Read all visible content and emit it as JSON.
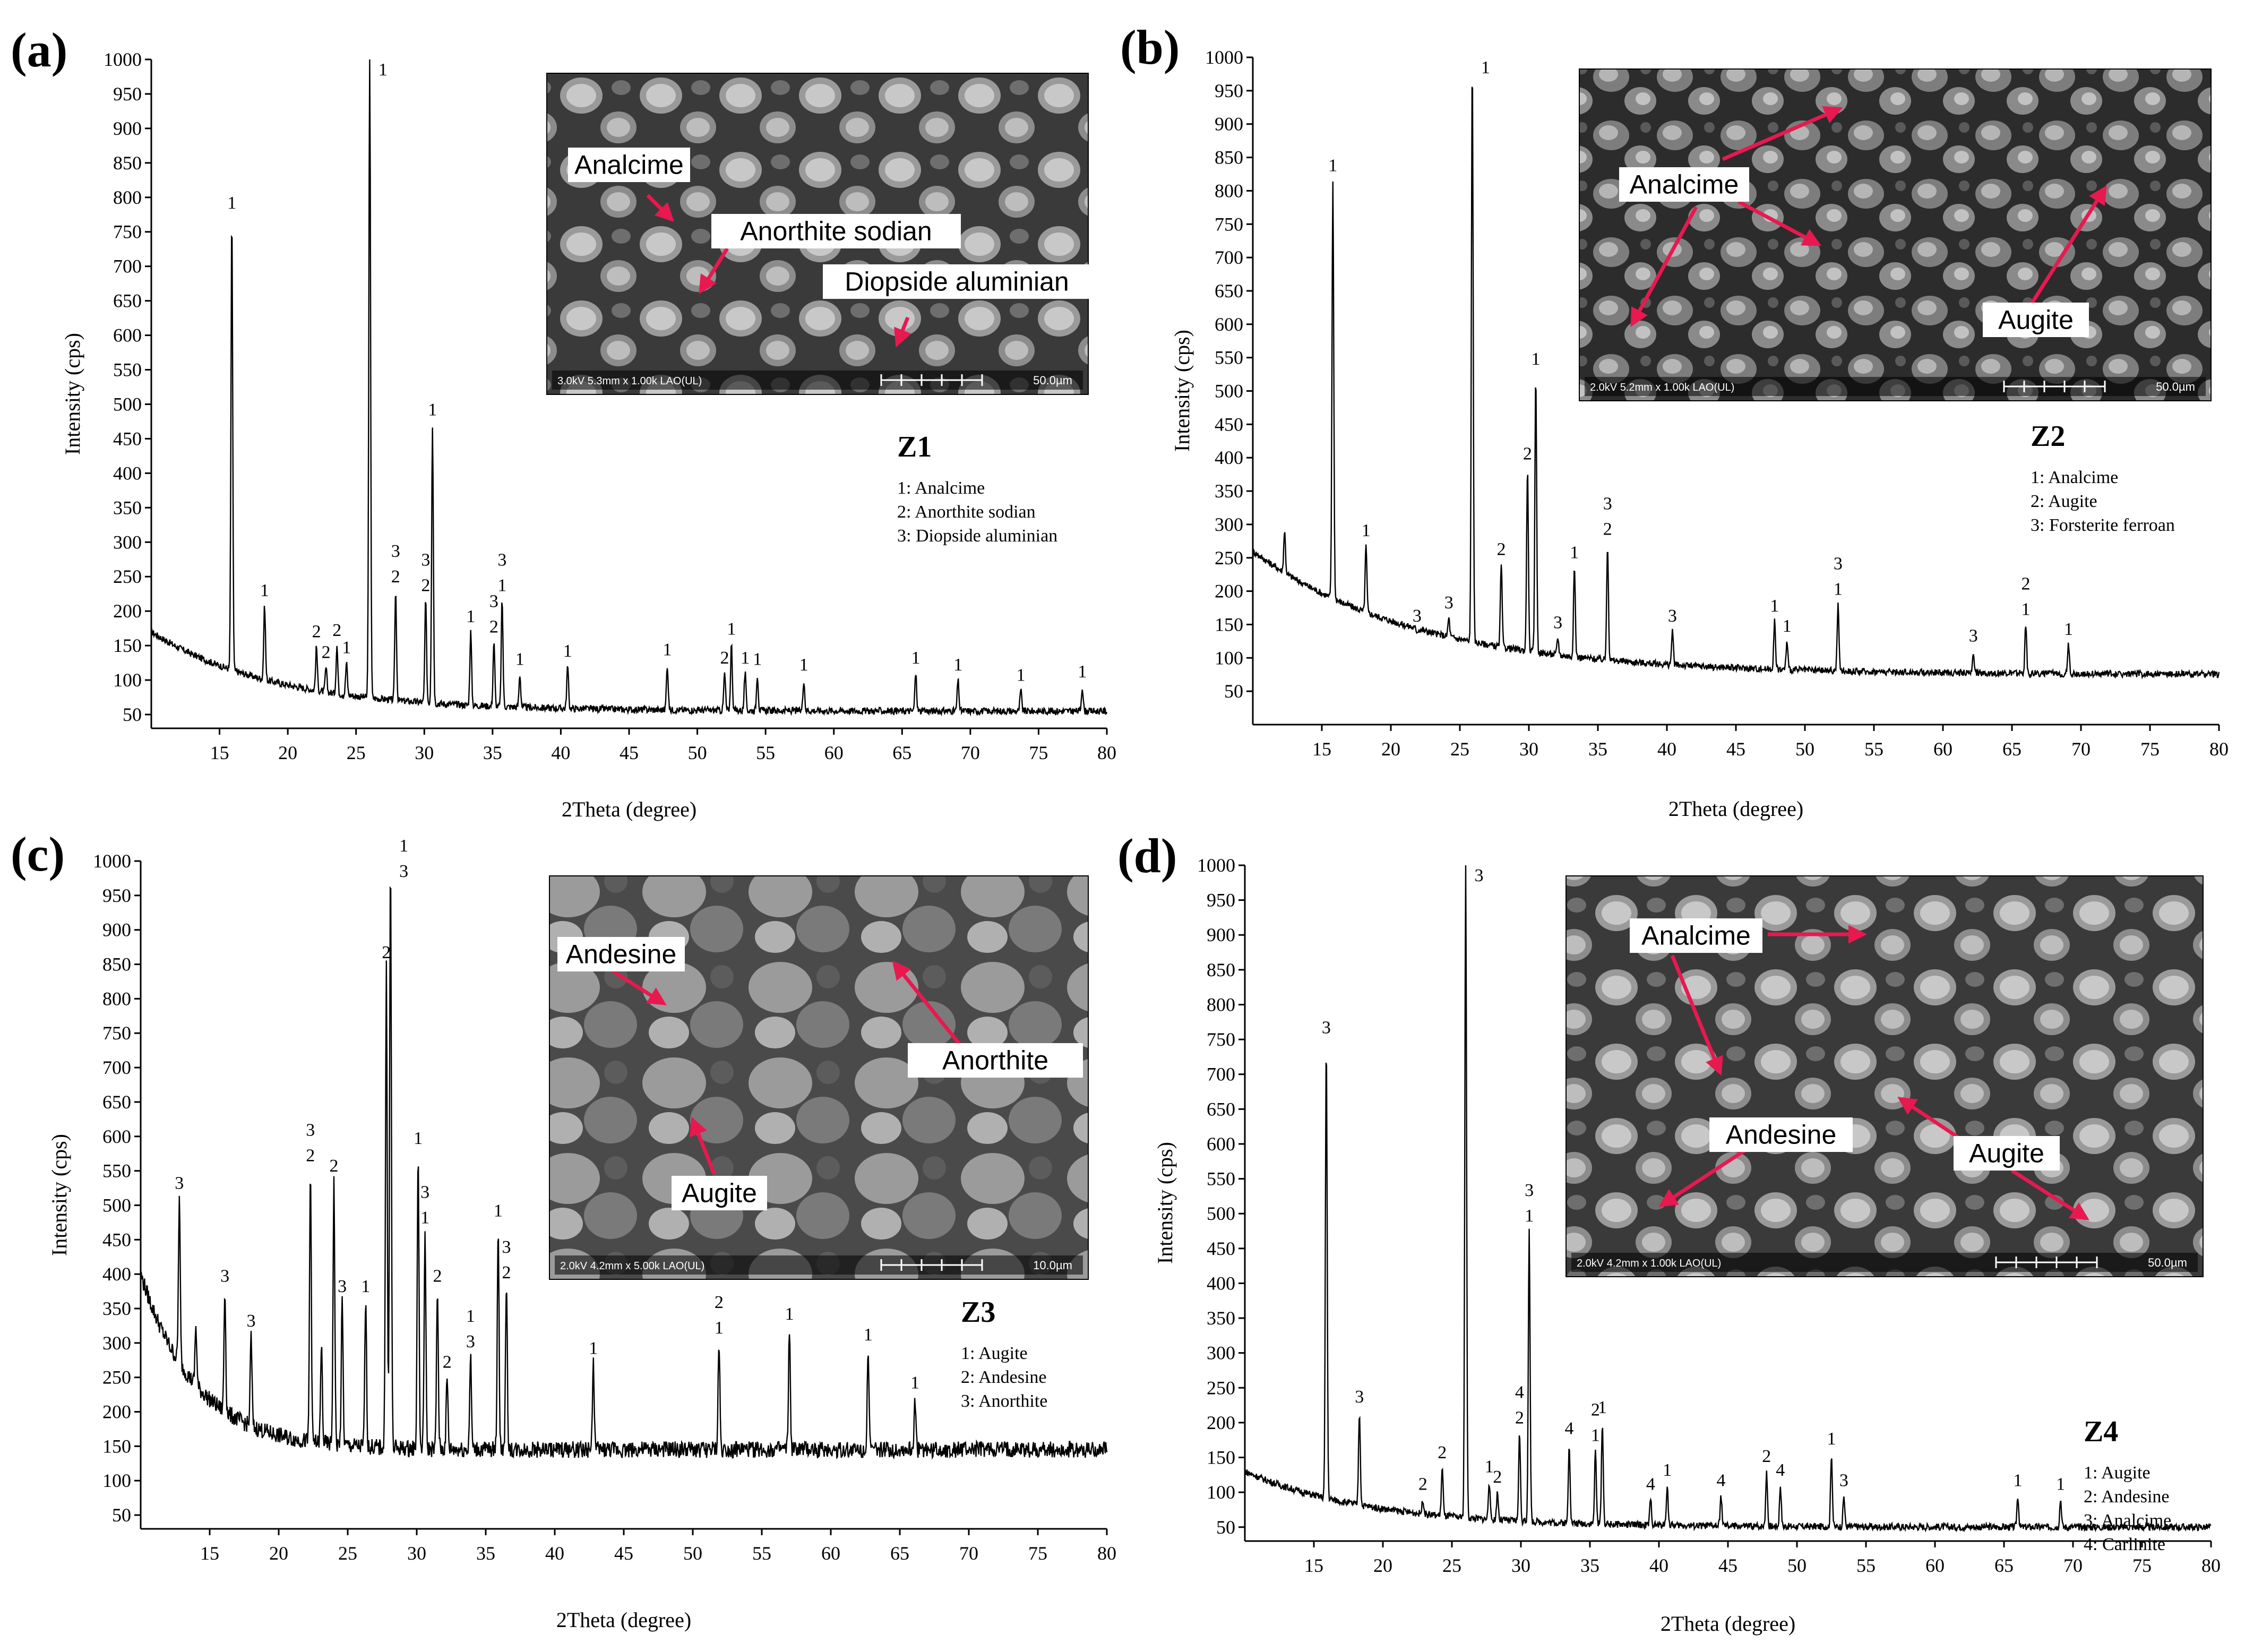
{
  "figure": {
    "colors": {
      "line": "#000000",
      "arrow": "#e8194f",
      "sem_dark": "#2a2a2a",
      "sem_mid": "#8a8a8a",
      "label_bg": "#ffffff"
    }
  },
  "chart_data": [
    {
      "type": "line",
      "panel_letter": "(a)",
      "sample": "Z1",
      "xlabel": "2Theta (degree)",
      "ylabel": "Intensity (cps)",
      "xlim": [
        10,
        80
      ],
      "ylim": [
        30,
        1000
      ],
      "x_ticks": [
        "15",
        "20",
        "25",
        "30",
        "35",
        "40",
        "45",
        "50",
        "55",
        "60",
        "65",
        "70",
        "75",
        "80"
      ],
      "y_ticks": [
        "50",
        "100",
        "150",
        "200",
        "250",
        "300",
        "350",
        "400",
        "450",
        "500",
        "550",
        "600",
        "650",
        "700",
        "750",
        "800",
        "850",
        "900",
        "950",
        "1000"
      ],
      "baseline": {
        "start": 170,
        "end": 55,
        "tau": 9
      },
      "peaks": [
        {
          "x": 15.9,
          "y": 770,
          "label": [
            "1"
          ]
        },
        {
          "x": 18.3,
          "y": 208,
          "label": [
            "1"
          ]
        },
        {
          "x": 22.1,
          "y": 148,
          "label": [
            "2"
          ]
        },
        {
          "x": 22.8,
          "y": 118,
          "label": [
            "2"
          ]
        },
        {
          "x": 23.6,
          "y": 150,
          "label": [
            "2"
          ]
        },
        {
          "x": 24.3,
          "y": 125,
          "label": [
            "1"
          ]
        },
        {
          "x": 26.0,
          "y": 1000,
          "label": [
            "1"
          ]
        },
        {
          "x": 27.9,
          "y": 228,
          "label": [
            "3",
            "2"
          ]
        },
        {
          "x": 30.1,
          "y": 215,
          "label": [
            "3",
            "2"
          ]
        },
        {
          "x": 30.6,
          "y": 470,
          "label": [
            "1"
          ]
        },
        {
          "x": 33.4,
          "y": 170,
          "label": [
            "1"
          ]
        },
        {
          "x": 35.1,
          "y": 155,
          "label": [
            "3",
            "2"
          ]
        },
        {
          "x": 35.7,
          "y": 215,
          "label": [
            "3",
            "1"
          ]
        },
        {
          "x": 37.0,
          "y": 108,
          "label": [
            "1"
          ]
        },
        {
          "x": 40.5,
          "y": 120,
          "label": [
            "1"
          ]
        },
        {
          "x": 47.8,
          "y": 122,
          "label": [
            "1"
          ]
        },
        {
          "x": 52.0,
          "y": 110,
          "label": [
            "2"
          ]
        },
        {
          "x": 52.5,
          "y": 152,
          "label": [
            "1"
          ]
        },
        {
          "x": 53.5,
          "y": 110,
          "label": [
            "1"
          ]
        },
        {
          "x": 54.4,
          "y": 108,
          "label": [
            "1"
          ]
        },
        {
          "x": 57.8,
          "y": 100,
          "label": [
            "1"
          ]
        },
        {
          "x": 66.0,
          "y": 110,
          "label": [
            "1"
          ]
        },
        {
          "x": 69.1,
          "y": 100,
          "label": [
            "1"
          ]
        },
        {
          "x": 73.7,
          "y": 85,
          "label": [
            "1"
          ]
        },
        {
          "x": 78.2,
          "y": 90,
          "label": [
            "1"
          ]
        }
      ],
      "legend": {
        "title": "Z1",
        "entries": [
          "1: Analcime",
          "2: Anorthite sodian",
          "3: Diopside aluminian"
        ]
      },
      "inset": {
        "scale_info": "3.0kV 5.3mm x 1.00k LAO(UL)",
        "scale_bar": "50.0µm",
        "labels": [
          "Analcime",
          "Anorthite sodian",
          "Diopside aluminian"
        ]
      }
    },
    {
      "type": "line",
      "panel_letter": "(b)",
      "sample": "Z2",
      "xlabel": "2Theta (degree)",
      "ylabel": "Intensity (cps)",
      "xlim": [
        10,
        80
      ],
      "ylim": [
        0,
        1000
      ],
      "x_ticks": [
        "15",
        "20",
        "25",
        "30",
        "35",
        "40",
        "45",
        "50",
        "55",
        "60",
        "65",
        "70",
        "75",
        "80"
      ],
      "y_ticks": [
        "50",
        "100",
        "150",
        "200",
        "250",
        "300",
        "350",
        "400",
        "450",
        "500",
        "550",
        "600",
        "650",
        "700",
        "750",
        "800",
        "850",
        "900",
        "950",
        "1000"
      ],
      "baseline": {
        "start": 260,
        "end": 75,
        "tau": 12
      },
      "peaks": [
        {
          "x": 12.3,
          "y": 290,
          "label": []
        },
        {
          "x": 15.8,
          "y": 815,
          "label": [
            "1"
          ]
        },
        {
          "x": 18.2,
          "y": 268,
          "label": [
            "1"
          ]
        },
        {
          "x": 21.9,
          "y": 140,
          "label": [
            "3"
          ]
        },
        {
          "x": 24.2,
          "y": 160,
          "label": [
            "3"
          ]
        },
        {
          "x": 25.9,
          "y": 1000,
          "label": [
            "1"
          ]
        },
        {
          "x": 28.0,
          "y": 240,
          "label": [
            "2"
          ]
        },
        {
          "x": 29.9,
          "y": 383,
          "label": [
            "2"
          ]
        },
        {
          "x": 30.5,
          "y": 525,
          "label": [
            "1"
          ]
        },
        {
          "x": 32.1,
          "y": 130,
          "label": [
            "3"
          ]
        },
        {
          "x": 33.3,
          "y": 235,
          "label": [
            "1"
          ]
        },
        {
          "x": 35.7,
          "y": 270,
          "label": [
            "3",
            "2"
          ]
        },
        {
          "x": 40.4,
          "y": 140,
          "label": [
            "3"
          ]
        },
        {
          "x": 47.8,
          "y": 155,
          "label": [
            "1"
          ]
        },
        {
          "x": 48.7,
          "y": 125,
          "label": [
            "1"
          ]
        },
        {
          "x": 52.4,
          "y": 180,
          "label": [
            "3",
            "1"
          ]
        },
        {
          "x": 62.2,
          "y": 110,
          "label": [
            "3"
          ]
        },
        {
          "x": 66.0,
          "y": 150,
          "label": [
            "2",
            "1"
          ]
        },
        {
          "x": 69.1,
          "y": 120,
          "label": [
            "1"
          ]
        }
      ],
      "legend": {
        "title": "Z2",
        "entries": [
          "1: Analcime",
          "2: Augite",
          "3: Forsterite ferroan"
        ]
      },
      "inset": {
        "scale_info": "2.0kV 5.2mm x 1.00k LAO(UL)",
        "scale_bar": "50.0µm",
        "labels": [
          "Analcime",
          "Augite"
        ]
      }
    },
    {
      "type": "line",
      "panel_letter": "(c)",
      "sample": "Z3",
      "xlabel": "2Theta (degree)",
      "ylabel": "Intensity (cps)",
      "xlim": [
        10,
        80
      ],
      "ylim": [
        30,
        1000
      ],
      "x_ticks": [
        "15",
        "20",
        "25",
        "30",
        "35",
        "40",
        "45",
        "50",
        "55",
        "60",
        "65",
        "70",
        "75",
        "80"
      ],
      "y_ticks": [
        "50",
        "100",
        "150",
        "200",
        "250",
        "300",
        "350",
        "400",
        "450",
        "500",
        "550",
        "600",
        "650",
        "700",
        "750",
        "800",
        "850",
        "900",
        "950",
        "1000"
      ],
      "baseline": {
        "start": 400,
        "end": 145,
        "tau": 4
      },
      "peaks": [
        {
          "x": 12.8,
          "y": 510,
          "label": [
            "3"
          ]
        },
        {
          "x": 14.0,
          "y": 325,
          "label": []
        },
        {
          "x": 16.1,
          "y": 375,
          "label": [
            "3"
          ]
        },
        {
          "x": 18.0,
          "y": 310,
          "label": [
            "3"
          ]
        },
        {
          "x": 22.3,
          "y": 550,
          "label": [
            "3",
            "2"
          ]
        },
        {
          "x": 23.1,
          "y": 295,
          "label": []
        },
        {
          "x": 24.0,
          "y": 535,
          "label": [
            "2"
          ]
        },
        {
          "x": 24.6,
          "y": 360,
          "label": [
            "3"
          ]
        },
        {
          "x": 26.3,
          "y": 360,
          "label": [
            "1"
          ]
        },
        {
          "x": 27.8,
          "y": 845,
          "label": [
            "2"
          ]
        },
        {
          "x": 28.1,
          "y": 1000,
          "label": [
            "1",
            "3"
          ]
        },
        {
          "x": 30.1,
          "y": 575,
          "label": [
            "1"
          ]
        },
        {
          "x": 30.6,
          "y": 460,
          "label": [
            "3",
            "1"
          ]
        },
        {
          "x": 31.5,
          "y": 375,
          "label": [
            "2"
          ]
        },
        {
          "x": 32.2,
          "y": 250,
          "label": [
            "2"
          ]
        },
        {
          "x": 33.9,
          "y": 280,
          "label": [
            "1",
            "3"
          ]
        },
        {
          "x": 35.9,
          "y": 470,
          "label": [
            "1"
          ]
        },
        {
          "x": 36.5,
          "y": 380,
          "label": [
            "3",
            "2"
          ]
        },
        {
          "x": 42.8,
          "y": 270,
          "label": [
            "1"
          ]
        },
        {
          "x": 51.9,
          "y": 300,
          "label": [
            "2",
            "1"
          ]
        },
        {
          "x": 57.0,
          "y": 320,
          "label": [
            "1"
          ]
        },
        {
          "x": 62.7,
          "y": 290,
          "label": [
            "1"
          ]
        },
        {
          "x": 66.1,
          "y": 220,
          "label": [
            "1"
          ]
        }
      ],
      "legend": {
        "title": "Z3",
        "entries": [
          "1: Augite",
          "2: Andesine",
          "3: Anorthite"
        ]
      },
      "inset": {
        "scale_info": "2.0kV 4.2mm x 5.00k LAO(UL)",
        "scale_bar": "10.0µm",
        "labels": [
          "Andesine",
          "Anorthite",
          "Augite"
        ]
      }
    },
    {
      "type": "line",
      "panel_letter": "(d)",
      "sample": "Z4",
      "xlabel": "2Theta (degree)",
      "ylabel": "Intensity (cps)",
      "xlim": [
        10,
        80
      ],
      "ylim": [
        30,
        1000
      ],
      "x_ticks": [
        "15",
        "20",
        "25",
        "30",
        "35",
        "40",
        "45",
        "50",
        "55",
        "60",
        "65",
        "70",
        "75",
        "80"
      ],
      "y_ticks": [
        "50",
        "100",
        "150",
        "200",
        "250",
        "300",
        "350",
        "400",
        "450",
        "500",
        "550",
        "600",
        "650",
        "700",
        "750",
        "800",
        "850",
        "900",
        "950",
        "1000"
      ],
      "baseline": {
        "start": 130,
        "end": 50,
        "tau": 9
      },
      "peaks": [
        {
          "x": 15.9,
          "y": 745,
          "label": [
            "3"
          ]
        },
        {
          "x": 18.3,
          "y": 215,
          "label": [
            "3"
          ]
        },
        {
          "x": 22.9,
          "y": 90,
          "label": [
            "2"
          ]
        },
        {
          "x": 24.3,
          "y": 135,
          "label": [
            "2"
          ]
        },
        {
          "x": 26.0,
          "y": 1000,
          "label": [
            "3"
          ]
        },
        {
          "x": 27.7,
          "y": 115,
          "label": [
            "1"
          ]
        },
        {
          "x": 28.3,
          "y": 100,
          "label": [
            "2"
          ]
        },
        {
          "x": 29.9,
          "y": 185,
          "label": [
            "4",
            "2"
          ]
        },
        {
          "x": 30.6,
          "y": 475,
          "label": [
            "3",
            "1"
          ]
        },
        {
          "x": 33.5,
          "y": 170,
          "label": [
            "4"
          ]
        },
        {
          "x": 35.4,
          "y": 160,
          "label": [
            "2",
            "1"
          ]
        },
        {
          "x": 35.9,
          "y": 200,
          "label": [
            "1"
          ]
        },
        {
          "x": 39.4,
          "y": 90,
          "label": [
            "4"
          ]
        },
        {
          "x": 40.6,
          "y": 110,
          "label": [
            "1"
          ]
        },
        {
          "x": 44.5,
          "y": 95,
          "label": [
            "4"
          ]
        },
        {
          "x": 47.8,
          "y": 130,
          "label": [
            "2"
          ]
        },
        {
          "x": 48.8,
          "y": 110,
          "label": [
            "4"
          ]
        },
        {
          "x": 52.5,
          "y": 155,
          "label": [
            "1"
          ]
        },
        {
          "x": 53.4,
          "y": 95,
          "label": [
            "3"
          ]
        },
        {
          "x": 66.0,
          "y": 95,
          "label": [
            "1"
          ]
        },
        {
          "x": 69.1,
          "y": 90,
          "label": [
            "1"
          ]
        }
      ],
      "legend": {
        "title": "Z4",
        "entries": [
          "1: Augite",
          "2: Andesine",
          "3: Analcime",
          "4: Carlinite"
        ]
      },
      "inset": {
        "scale_info": "2.0kV 4.2mm x 1.00k LAO(UL)",
        "scale_bar": "50.0µm",
        "labels": [
          "Analcime",
          "Andesine",
          "Augite"
        ]
      }
    }
  ]
}
